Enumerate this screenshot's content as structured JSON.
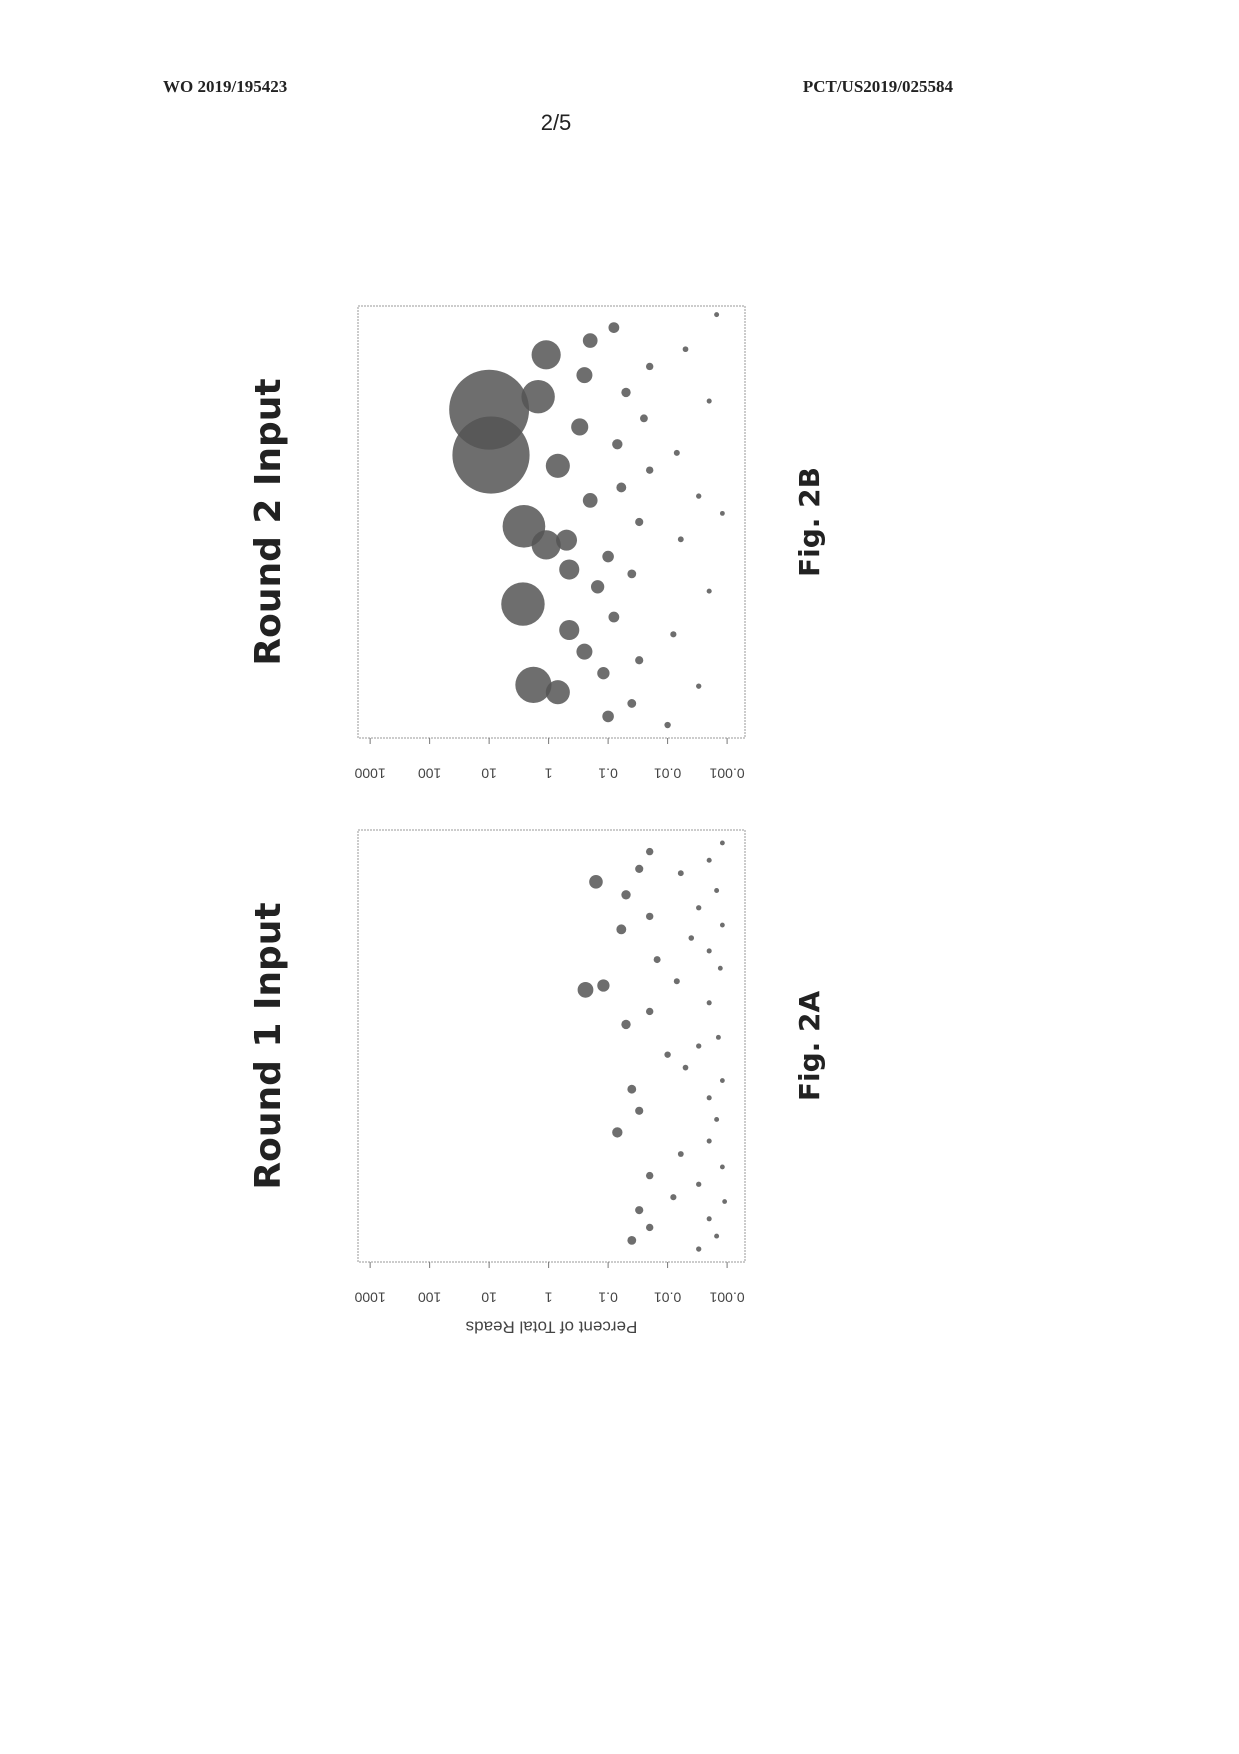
{
  "header": {
    "left": "WO 2019/195423",
    "right": "PCT/US2019/025584",
    "page": "2/5"
  },
  "chart_data": [
    {
      "type": "scatter",
      "title": "Round 1 Input",
      "y_label": "Percent of Total Reads",
      "caption": "Fig. 2A",
      "y_scale": "log",
      "color": "#555555",
      "xlim": [
        0,
        100
      ],
      "ylim": [
        0.0005,
        1600
      ],
      "yticks": [
        1000,
        100,
        10,
        1,
        0.1,
        0.01,
        0.001
      ],
      "x": [
        63,
        64,
        88,
        85,
        91,
        77,
        30,
        40,
        55,
        12,
        8,
        5,
        20,
        35,
        48,
        58,
        70,
        80,
        95,
        15,
        25,
        45,
        65,
        75,
        90,
        3,
        10,
        18,
        28,
        38,
        50,
        60,
        72,
        82,
        93,
        6,
        22,
        33,
        42,
        52,
        68,
        78,
        86,
        97,
        14
      ],
      "values": [
        0.24,
        0.12,
        0.16,
        0.05,
        0.03,
        0.06,
        0.07,
        0.04,
        0.05,
        0.03,
        0.02,
        0.04,
        0.02,
        0.03,
        0.01,
        0.02,
        0.015,
        0.02,
        0.02,
        0.008,
        0.006,
        0.005,
        0.007,
        0.004,
        0.006,
        0.003,
        0.002,
        0.003,
        0.002,
        0.002,
        0.003,
        0.002,
        0.002,
        0.003,
        0.002,
        0.0015,
        0.0012,
        0.0015,
        0.0012,
        0.0014,
        0.0013,
        0.0012,
        0.0015,
        0.0012,
        0.0011
      ]
    },
    {
      "type": "scatter",
      "title": "Round 2 Input",
      "caption": "Fig. 2B",
      "y_scale": "log",
      "color": "#555555",
      "xlim": [
        0,
        100
      ],
      "ylim": [
        0.0005,
        1600
      ],
      "yticks": [
        1000,
        100,
        10,
        1,
        0.1,
        0.01,
        0.001
      ],
      "x": [
        65.5,
        76,
        49,
        31,
        12.3,
        88.7,
        79,
        63,
        10.6,
        44.7,
        45.8,
        39,
        25,
        72,
        84,
        55,
        20,
        35,
        92,
        5,
        15,
        28,
        42,
        58,
        68,
        80,
        95,
        8,
        18,
        38,
        50,
        62,
        74,
        86,
        3,
        24,
        46,
        66,
        90,
        12,
        34,
        56,
        78,
        98,
        52
      ],
      "values": [
        9.3,
        10,
        2.6,
        2.7,
        1.8,
        1.1,
        1.5,
        0.7,
        0.7,
        1.1,
        0.5,
        0.45,
        0.45,
        0.3,
        0.25,
        0.2,
        0.25,
        0.15,
        0.2,
        0.1,
        0.12,
        0.08,
        0.1,
        0.06,
        0.07,
        0.05,
        0.08,
        0.04,
        0.03,
        0.04,
        0.03,
        0.02,
        0.025,
        0.02,
        0.01,
        0.008,
        0.006,
        0.007,
        0.005,
        0.003,
        0.002,
        0.003,
        0.002,
        0.0015,
        0.0012
      ]
    }
  ]
}
